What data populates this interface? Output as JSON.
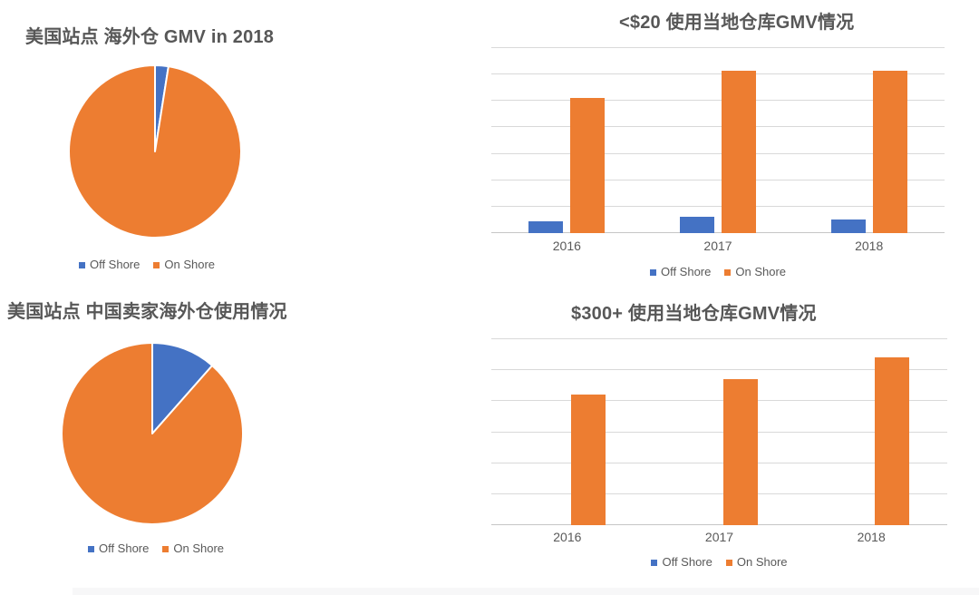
{
  "colors": {
    "off_shore": "#4472C4",
    "on_shore": "#ED7D31",
    "title_text": "#575757",
    "axis_text": "#595959",
    "gridline": "#D9D9D9"
  },
  "legend_labels": [
    "Off Shore",
    "On Shore"
  ],
  "chart_data": [
    {
      "id": "pie-us-overseas-gmv-2018",
      "type": "pie",
      "title": "美国站点 海外仓 GMV in 2018",
      "unit": "percent (estimated from slice angles)",
      "series": [
        {
          "name": "Off Shore",
          "value": 2.5,
          "color": "#4472C4"
        },
        {
          "name": "On Shore",
          "value": 97.5,
          "color": "#ED7D31"
        }
      ],
      "legend_position": "bottom"
    },
    {
      "id": "bar-under-20-local-warehouse-gmv",
      "type": "bar",
      "title": "<$20 使用当地仓库GMV情况",
      "categories": [
        "2016",
        "2017",
        "2018"
      ],
      "series": [
        {
          "name": "Off Shore",
          "color": "#4472C4",
          "values": [
            4.5,
            6,
            5
          ]
        },
        {
          "name": "On Shore",
          "color": "#ED7D31",
          "values": [
            51,
            61,
            61
          ]
        }
      ],
      "ylim": [
        0,
        70
      ],
      "gridline_step": 10,
      "grid": true,
      "y_axis_labels_shown": false,
      "values_estimated_from_gridlines": true,
      "legend_position": "bottom"
    },
    {
      "id": "pie-us-china-sellers-overseas-warehouse-usage",
      "type": "pie",
      "title": "美国站点 中国卖家海外仓使用情况",
      "unit": "percent (estimated from slice angles)",
      "series": [
        {
          "name": "Off Shore",
          "value": 11.5,
          "color": "#4472C4"
        },
        {
          "name": "On Shore",
          "value": 88.5,
          "color": "#ED7D31"
        }
      ],
      "legend_position": "bottom"
    },
    {
      "id": "bar-over-300-local-warehouse-gmv",
      "type": "bar",
      "title": "$300+ 使用当地仓库GMV情况",
      "categories": [
        "2016",
        "2017",
        "2018"
      ],
      "series": [
        {
          "name": "Off Shore",
          "color": "#4472C4",
          "values": [
            0,
            0,
            0
          ]
        },
        {
          "name": "On Shore",
          "color": "#ED7D31",
          "values": [
            42,
            47,
            54
          ]
        }
      ],
      "ylim": [
        0,
        60
      ],
      "gridline_step": 10,
      "grid": true,
      "y_axis_labels_shown": false,
      "values_estimated_from_gridlines": true,
      "legend_position": "bottom"
    }
  ]
}
